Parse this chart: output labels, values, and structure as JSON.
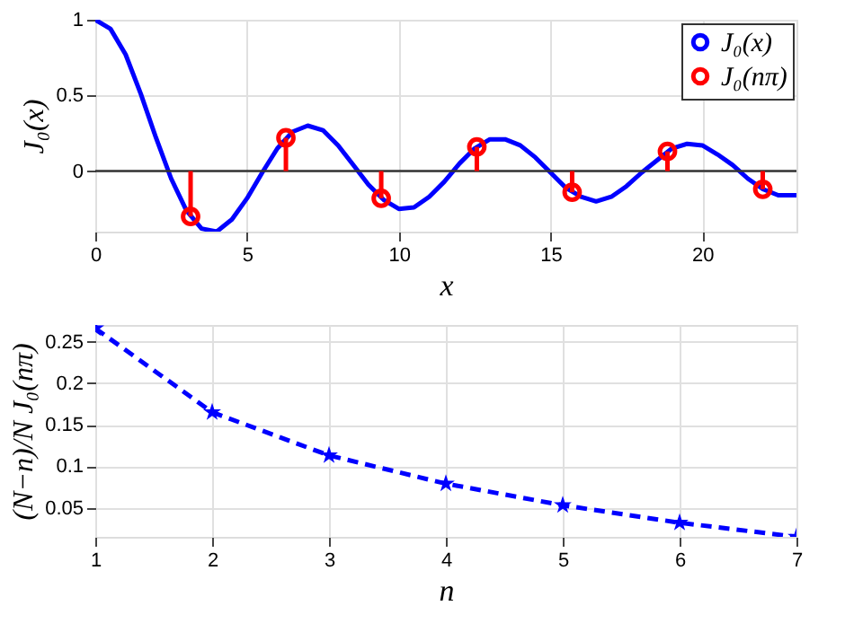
{
  "chart_data": [
    {
      "type": "line",
      "xlabel": "x",
      "ylabel": "J₀(x)",
      "xlim": [
        0,
        23.1
      ],
      "ylim": [
        -0.4,
        1
      ],
      "xticks": [
        0,
        5,
        10,
        15,
        20
      ],
      "yticks": [
        0,
        0.5,
        1
      ],
      "grid": true,
      "legend": "top right",
      "series": [
        {
          "name": "J₀(x)",
          "color": "#0000ff",
          "marker": "none",
          "line_style": "solid",
          "x": [
            0,
            0.5,
            1,
            1.5,
            2,
            2.5,
            3,
            3.5,
            4,
            4.5,
            5,
            5.5,
            6,
            6.5,
            7,
            7.5,
            8,
            8.5,
            9,
            9.5,
            10,
            10.5,
            11,
            11.5,
            12,
            12.5,
            13,
            13.5,
            14,
            14.5,
            15,
            15.5,
            16,
            16.5,
            17,
            17.5,
            18,
            18.5,
            19,
            19.5,
            20,
            20.5,
            21,
            21.5,
            22,
            22.5,
            23,
            23.1
          ],
          "values": [
            1,
            0.94,
            0.77,
            0.51,
            0.22,
            -0.05,
            -0.26,
            -0.38,
            -0.4,
            -0.32,
            -0.18,
            -0.01,
            0.15,
            0.26,
            0.3,
            0.27,
            0.17,
            0.04,
            -0.09,
            -0.19,
            -0.25,
            -0.24,
            -0.17,
            -0.07,
            0.05,
            0.15,
            0.21,
            0.21,
            0.17,
            0.09,
            -0.01,
            -0.11,
            -0.17,
            -0.2,
            -0.17,
            -0.1,
            -0.01,
            0.07,
            0.15,
            0.18,
            0.17,
            0.11,
            0.04,
            -0.05,
            -0.12,
            -0.16,
            -0.16,
            -0.16
          ]
        },
        {
          "name": "J₀(nπ)",
          "color": "#ff0000",
          "type": "lollipop",
          "marker": "circle",
          "x": [
            3.14,
            6.28,
            9.42,
            12.57,
            15.71,
            18.85,
            21.99
          ],
          "values": [
            -0.3,
            0.22,
            -0.18,
            0.16,
            -0.14,
            0.13,
            -0.12
          ]
        }
      ]
    },
    {
      "type": "line",
      "xlabel": "n",
      "ylabel": "(N−n)/N J₀(nπ)",
      "xlim": [
        1,
        7
      ],
      "ylim": [
        0.015,
        0.27
      ],
      "xticks": [
        1,
        2,
        3,
        4,
        5,
        6,
        7
      ],
      "yticks": [
        0.05,
        0.1,
        0.15,
        0.2,
        0.25
      ],
      "grid": true,
      "series": [
        {
          "color": "#0000ff",
          "marker": "star",
          "line_style": "dashed",
          "x": [
            1,
            2,
            3,
            4,
            5,
            6,
            7
          ],
          "values": [
            0.266,
            0.165,
            0.113,
            0.079,
            0.053,
            0.032,
            0.015
          ]
        }
      ]
    }
  ]
}
